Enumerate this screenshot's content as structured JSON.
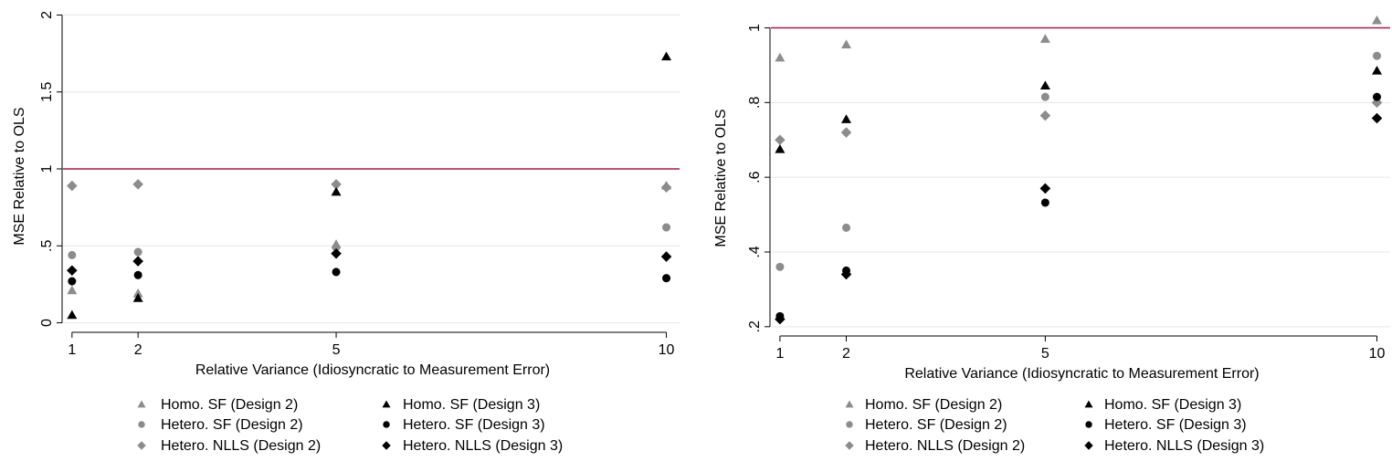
{
  "chart_data": [
    {
      "type": "scatter",
      "title": "",
      "xlabel": "Relative Variance (Idiosyncratic to Measurement Error)",
      "ylabel": "MSE Relative to OLS",
      "xlim": [
        0.85,
        10.2
      ],
      "ylim": [
        -0.05,
        2.05
      ],
      "x_ticks": [
        1,
        2,
        5,
        10
      ],
      "x_tick_labels": [
        "1",
        "2",
        "5",
        "10"
      ],
      "y_ticks": [
        0,
        0.5,
        1,
        1.5,
        2
      ],
      "y_tick_labels": [
        "0",
        ".5",
        "1",
        "1.5",
        "2"
      ],
      "grid": "horizontal",
      "reference_line": {
        "y": 1,
        "color": "#a31a4a"
      },
      "legend_position": "bottom",
      "series": [
        {
          "name": "Homo. SF (Design 2)",
          "marker": "triangle",
          "color": "#8c8c8c",
          "points": [
            [
              1,
              0.21
            ],
            [
              2,
              0.19
            ],
            [
              5,
              0.51
            ],
            [
              10,
              0.89
            ]
          ]
        },
        {
          "name": "Homo. SF (Design 3)",
          "marker": "triangle",
          "color": "#000000",
          "points": [
            [
              1,
              0.05
            ],
            [
              2,
              0.16
            ],
            [
              5,
              0.85
            ],
            [
              10,
              1.73
            ]
          ]
        },
        {
          "name": "Hetero. SF (Design 2)",
          "marker": "circle",
          "color": "#8c8c8c",
          "points": [
            [
              1,
              0.44
            ],
            [
              2,
              0.46
            ],
            [
              5,
              0.49
            ],
            [
              10,
              0.62
            ]
          ]
        },
        {
          "name": "Hetero. SF (Design 3)",
          "marker": "circle",
          "color": "#000000",
          "points": [
            [
              1,
              0.27
            ],
            [
              2,
              0.31
            ],
            [
              5,
              0.33
            ],
            [
              10,
              0.29
            ]
          ]
        },
        {
          "name": "Hetero. NLLS (Design 2)",
          "marker": "diamond",
          "color": "#8c8c8c",
          "points": [
            [
              1,
              0.89
            ],
            [
              2,
              0.9
            ],
            [
              5,
              0.9
            ],
            [
              10,
              0.88
            ]
          ]
        },
        {
          "name": "Hetero. NLLS (Design 3)",
          "marker": "diamond",
          "color": "#000000",
          "points": [
            [
              1,
              0.34
            ],
            [
              2,
              0.4
            ],
            [
              5,
              0.45
            ],
            [
              10,
              0.43
            ]
          ]
        }
      ]
    },
    {
      "type": "scatter",
      "title": "",
      "xlabel": "Relative Variance (Idiosyncratic to Measurement Error)",
      "ylabel": "MSE Relative to OLS",
      "xlim": [
        0.85,
        10.2
      ],
      "ylim": [
        0.18,
        1.055
      ],
      "x_ticks": [
        1,
        2,
        5,
        10
      ],
      "x_tick_labels": [
        "1",
        "2",
        "5",
        "10"
      ],
      "y_ticks": [
        0.2,
        0.4,
        0.6,
        0.8,
        1
      ],
      "y_tick_labels": [
        ".2",
        ".4",
        ".6",
        ".8",
        "1"
      ],
      "grid": "horizontal",
      "reference_line": {
        "y": 1,
        "color": "#a31a4a"
      },
      "legend_position": "bottom",
      "series": [
        {
          "name": "Homo. SF (Design 2)",
          "marker": "triangle",
          "color": "#8c8c8c",
          "points": [
            [
              1,
              0.92
            ],
            [
              2,
              0.955
            ],
            [
              5,
              0.97
            ],
            [
              10,
              1.02
            ]
          ]
        },
        {
          "name": "Homo. SF (Design 3)",
          "marker": "triangle",
          "color": "#000000",
          "points": [
            [
              1,
              0.675
            ],
            [
              2,
              0.755
            ],
            [
              5,
              0.845
            ],
            [
              10,
              0.885
            ]
          ]
        },
        {
          "name": "Hetero. SF (Design 2)",
          "marker": "circle",
          "color": "#8c8c8c",
          "points": [
            [
              1,
              0.36
            ],
            [
              2,
              0.465
            ],
            [
              5,
              0.815
            ],
            [
              10,
              0.925
            ]
          ]
        },
        {
          "name": "Hetero. SF (Design 3)",
          "marker": "circle",
          "color": "#000000",
          "points": [
            [
              1,
              0.228
            ],
            [
              2,
              0.35
            ],
            [
              5,
              0.532
            ],
            [
              10,
              0.815
            ]
          ]
        },
        {
          "name": "Hetero. NLLS (Design 2)",
          "marker": "diamond",
          "color": "#8c8c8c",
          "points": [
            [
              1,
              0.7
            ],
            [
              2,
              0.72
            ],
            [
              5,
              0.765
            ],
            [
              10,
              0.8
            ]
          ]
        },
        {
          "name": "Hetero. NLLS (Design 3)",
          "marker": "diamond",
          "color": "#000000",
          "points": [
            [
              1,
              0.22
            ],
            [
              2,
              0.34
            ],
            [
              5,
              0.57
            ],
            [
              10,
              0.758
            ]
          ]
        }
      ]
    }
  ]
}
